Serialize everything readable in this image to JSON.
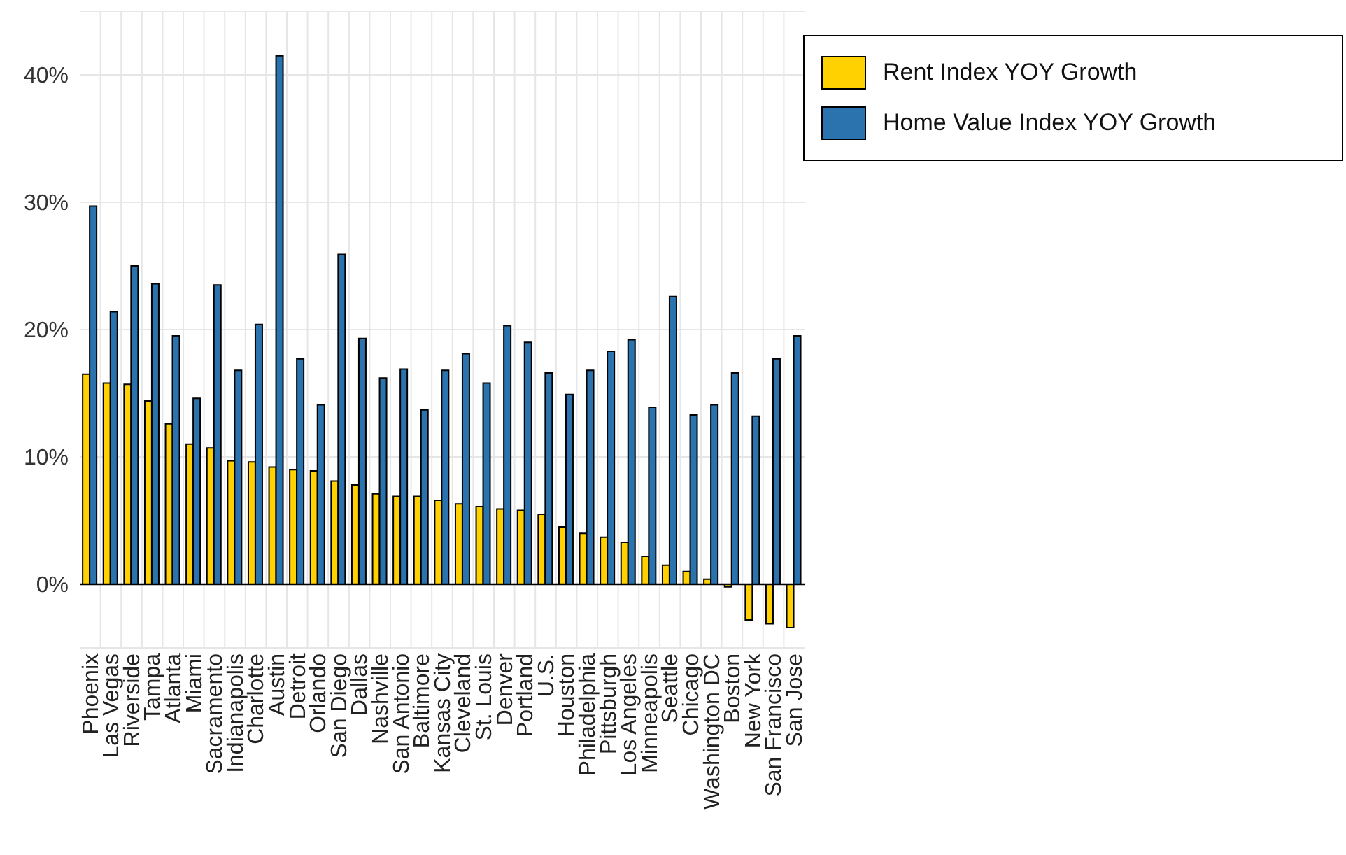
{
  "chart_data": {
    "type": "bar",
    "categories": [
      "Phoenix",
      "Las Vegas",
      "Riverside",
      "Tampa",
      "Atlanta",
      "Miami",
      "Sacramento",
      "Indianapolis",
      "Charlotte",
      "Austin",
      "Detroit",
      "Orlando",
      "San Diego",
      "Dallas",
      "Nashville",
      "San Antonio",
      "Baltimore",
      "Kansas City",
      "Cleveland",
      "St. Louis",
      "Denver",
      "Portland",
      "U.S.",
      "Houston",
      "Philadelphia",
      "Pittsburgh",
      "Los Angeles",
      "Minneapolis",
      "Seattle",
      "Chicago",
      "Washington DC",
      "Boston",
      "New York",
      "San Francisco",
      "San Jose"
    ],
    "series": [
      {
        "name": "Rent Index YOY Growth",
        "color": "#ffd100",
        "values": [
          16.5,
          15.8,
          15.7,
          14.4,
          12.6,
          11.0,
          10.7,
          9.7,
          9.6,
          9.2,
          9.0,
          8.9,
          8.1,
          7.8,
          7.1,
          6.9,
          6.9,
          6.6,
          6.3,
          6.1,
          5.9,
          5.8,
          5.5,
          4.5,
          4.0,
          3.7,
          3.3,
          2.2,
          1.5,
          1.0,
          0.4,
          -0.2,
          -2.8,
          -3.1,
          -3.4
        ]
      },
      {
        "name": "Home Value Index YOY Growth",
        "color": "#2a73ae",
        "values": [
          29.7,
          21.4,
          25.0,
          23.6,
          19.5,
          14.6,
          23.5,
          16.8,
          20.4,
          41.5,
          17.7,
          14.1,
          25.9,
          19.3,
          16.2,
          16.9,
          13.7,
          16.8,
          18.1,
          15.8,
          20.3,
          19.0,
          16.6,
          14.9,
          16.8,
          18.3,
          19.2,
          13.9,
          22.6,
          13.3,
          14.1,
          16.6,
          13.2,
          17.7,
          19.5
        ]
      }
    ],
    "ylim": [
      -5,
      45
    ],
    "yticks": [
      {
        "value": 0,
        "label": "0%"
      },
      {
        "value": 10,
        "label": "10%"
      },
      {
        "value": 20,
        "label": "20%"
      },
      {
        "value": 30,
        "label": "30%"
      },
      {
        "value": 40,
        "label": "40%"
      }
    ],
    "ref_lines": [
      {
        "axis": "y",
        "value": 0,
        "color": "#000000"
      }
    ],
    "grid": true,
    "legend": "top right"
  }
}
